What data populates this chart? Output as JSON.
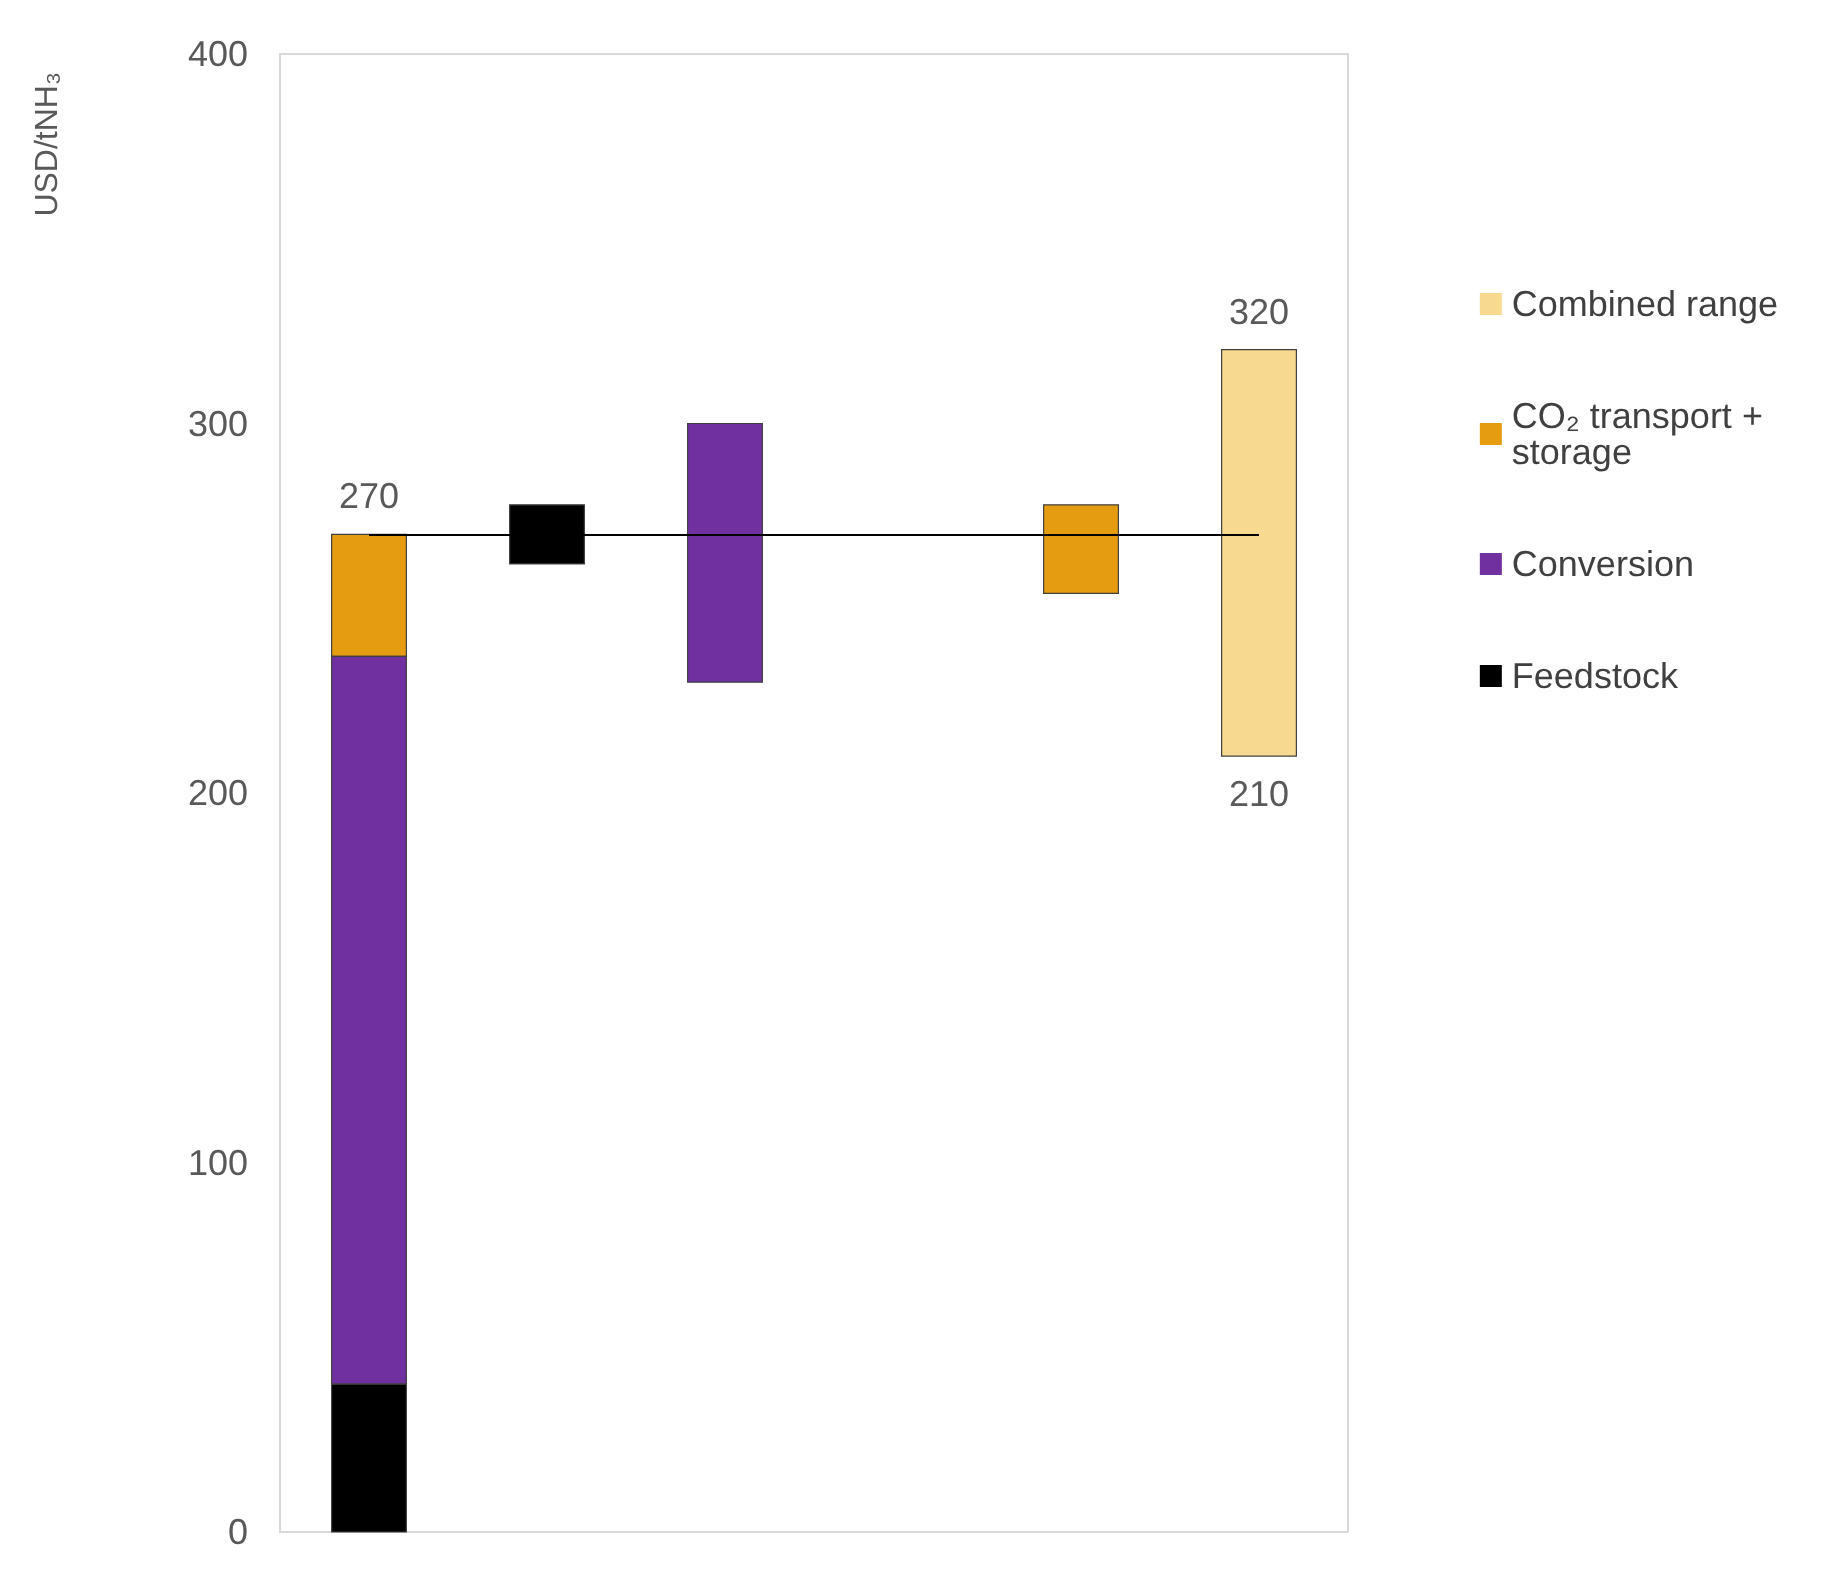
{
  "chart_data": {
    "type": "bar",
    "ylabel": "USD/tNH₃",
    "categories": [
      null,
      null,
      null,
      null,
      null,
      null
    ],
    "series": [
      {
        "name": "Combined range",
        "color": "#f7d98f",
        "values": [
          null,
          null,
          null,
          null,
          null,
          110
        ],
        "base": [
          null,
          null,
          null,
          null,
          null,
          210
        ]
      },
      {
        "name": "CO₂ transport + storage",
        "color": "#e59c10",
        "values": [
          33,
          null,
          null,
          null,
          24,
          null
        ],
        "base": [
          237,
          null,
          null,
          null,
          254,
          null
        ]
      },
      {
        "name": "Conversion",
        "color": "#7030a0",
        "values": [
          197,
          null,
          70,
          null,
          null,
          null
        ],
        "base": [
          40,
          null,
          230,
          null,
          null,
          null
        ]
      },
      {
        "name": "Feedstock",
        "color": "#000000",
        "values": [
          40,
          16,
          null,
          null,
          null,
          null
        ],
        "base": [
          0,
          262,
          null,
          null,
          null,
          null
        ]
      }
    ],
    "ylim": [
      0,
      400
    ],
    "yticks": [
      0,
      100,
      200,
      300,
      400
    ],
    "tick_labels": "y",
    "legend": "right",
    "ref_lines": [
      {
        "axis": "y",
        "value": 270,
        "color": "#000000"
      }
    ],
    "annotations": [
      {
        "text": "270",
        "y": 270
      },
      {
        "text": "320",
        "y": 320
      },
      {
        "text": "210",
        "y": 210
      }
    ]
  }
}
